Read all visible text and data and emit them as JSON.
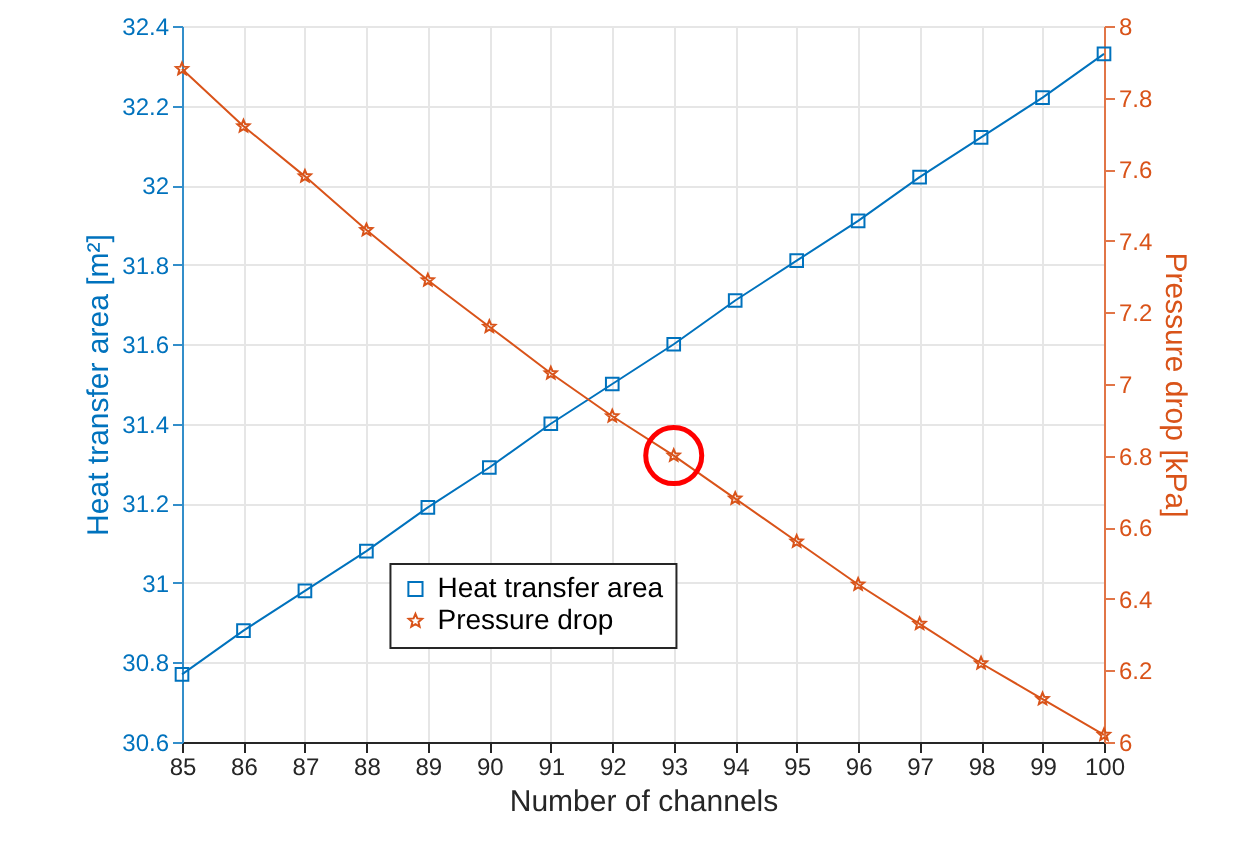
{
  "chart_data": {
    "type": "line",
    "xlabel": "Number of channels",
    "ylabel": "Heat transfer area [m²]",
    "y2label": "Pressure drop [kPa]",
    "x": [
      85,
      86,
      87,
      88,
      89,
      90,
      91,
      92,
      93,
      94,
      95,
      96,
      97,
      98,
      99,
      100
    ],
    "series": [
      {
        "name": "Heat transfer area",
        "color": "#0072bd",
        "marker": "square",
        "values": [
          30.77,
          30.88,
          30.98,
          31.08,
          31.19,
          31.29,
          31.4,
          31.5,
          31.6,
          31.71,
          31.81,
          31.91,
          32.02,
          32.12,
          32.22,
          32.33
        ]
      },
      {
        "name": "Pressure drop",
        "color": "#d95319",
        "marker": "star",
        "axis": "y2",
        "values": [
          7.88,
          7.72,
          7.58,
          7.43,
          7.29,
          7.16,
          7.03,
          6.91,
          6.8,
          6.68,
          6.56,
          6.44,
          6.33,
          6.22,
          6.12,
          6.02
        ]
      }
    ],
    "xlim": [
      85,
      100
    ],
    "xticks": [
      85,
      86,
      87,
      88,
      89,
      90,
      91,
      92,
      93,
      94,
      95,
      96,
      97,
      98,
      99,
      100
    ],
    "ylim": [
      30.6,
      32.4
    ],
    "yticks": [
      30.6,
      30.8,
      31,
      31.2,
      31.4,
      31.6,
      31.8,
      32,
      32.2,
      32.4
    ],
    "y2lim": [
      6,
      8
    ],
    "y2ticks": [
      6,
      6.2,
      6.4,
      6.6,
      6.8,
      7,
      7.2,
      7.4,
      7.6,
      7.8,
      8
    ],
    "grid": true,
    "legend": "bottom",
    "line_style": "solid"
  }
}
